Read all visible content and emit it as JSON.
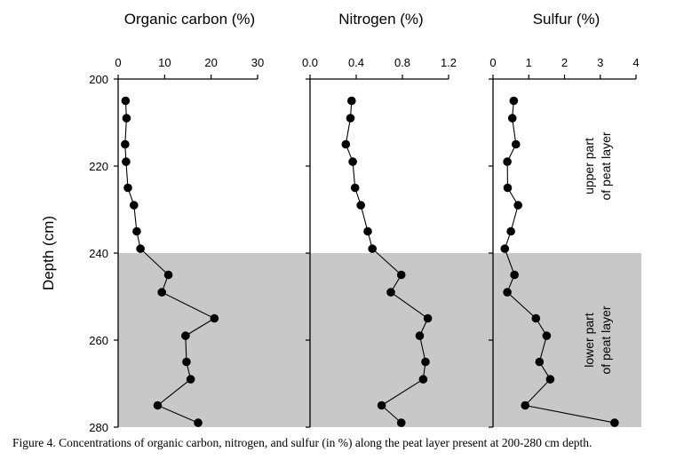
{
  "caption": "Figure 4. Concentrations of organic carbon, nitrogen, and sulfur (in %) along the peat layer present at 200-280 cm depth.",
  "colors": {
    "shade": "#c8c8c8",
    "ink": "#000000"
  },
  "chart_data": {
    "type": "scatter",
    "title": "Concentrations of organic carbon, nitrogen, and sulfur (in %) along the peat layer",
    "ylabel": "Depth (cm)",
    "ylim": [
      200,
      280
    ],
    "y_inverted": true,
    "y_ticks": [
      200,
      220,
      240,
      260,
      280
    ],
    "depth": [
      205,
      209,
      215,
      219,
      225,
      229,
      235,
      239,
      245,
      249,
      255,
      259,
      265,
      269,
      275,
      279
    ],
    "shaded_region": {
      "from": 240,
      "to": 280
    },
    "annotations": [
      {
        "lines": [
          "upper part",
          "of peat layer"
        ],
        "depth_center": 220
      },
      {
        "lines": [
          "lower part",
          "of peat layer"
        ],
        "depth_center": 260
      }
    ],
    "panels": [
      {
        "name": "organic-carbon",
        "xlabel": "Organic carbon (%)",
        "xlim": [
          0,
          30
        ],
        "x_ticks": [
          0,
          10,
          20,
          30
        ],
        "x_tick_labels": [
          "0",
          "10",
          "20",
          "30"
        ],
        "values": [
          1.6,
          1.8,
          1.5,
          1.7,
          2.1,
          3.4,
          4.0,
          4.8,
          10.8,
          9.4,
          20.7,
          14.5,
          14.7,
          15.6,
          8.5,
          17.2
        ]
      },
      {
        "name": "nitrogen",
        "xlabel": "Nitrogen (%)",
        "xlim": [
          0,
          1.2
        ],
        "x_ticks": [
          0,
          0.4,
          0.8,
          1.2
        ],
        "x_tick_labels": [
          "0.0",
          "0.4",
          "0.8",
          "1.2"
        ],
        "values": [
          0.36,
          0.35,
          0.31,
          0.37,
          0.39,
          0.44,
          0.5,
          0.54,
          0.79,
          0.7,
          1.02,
          0.95,
          1.0,
          0.98,
          0.62,
          0.79
        ]
      },
      {
        "name": "sulfur",
        "xlabel": "Sulfur (%)",
        "xlim": [
          0,
          4
        ],
        "x_ticks": [
          0,
          1,
          2,
          3,
          4
        ],
        "x_tick_labels": [
          "0",
          "1",
          "2",
          "3",
          "4"
        ],
        "values": [
          0.58,
          0.54,
          0.64,
          0.4,
          0.41,
          0.7,
          0.5,
          0.33,
          0.6,
          0.4,
          1.2,
          1.5,
          1.3,
          1.6,
          0.9,
          3.4
        ]
      }
    ]
  }
}
